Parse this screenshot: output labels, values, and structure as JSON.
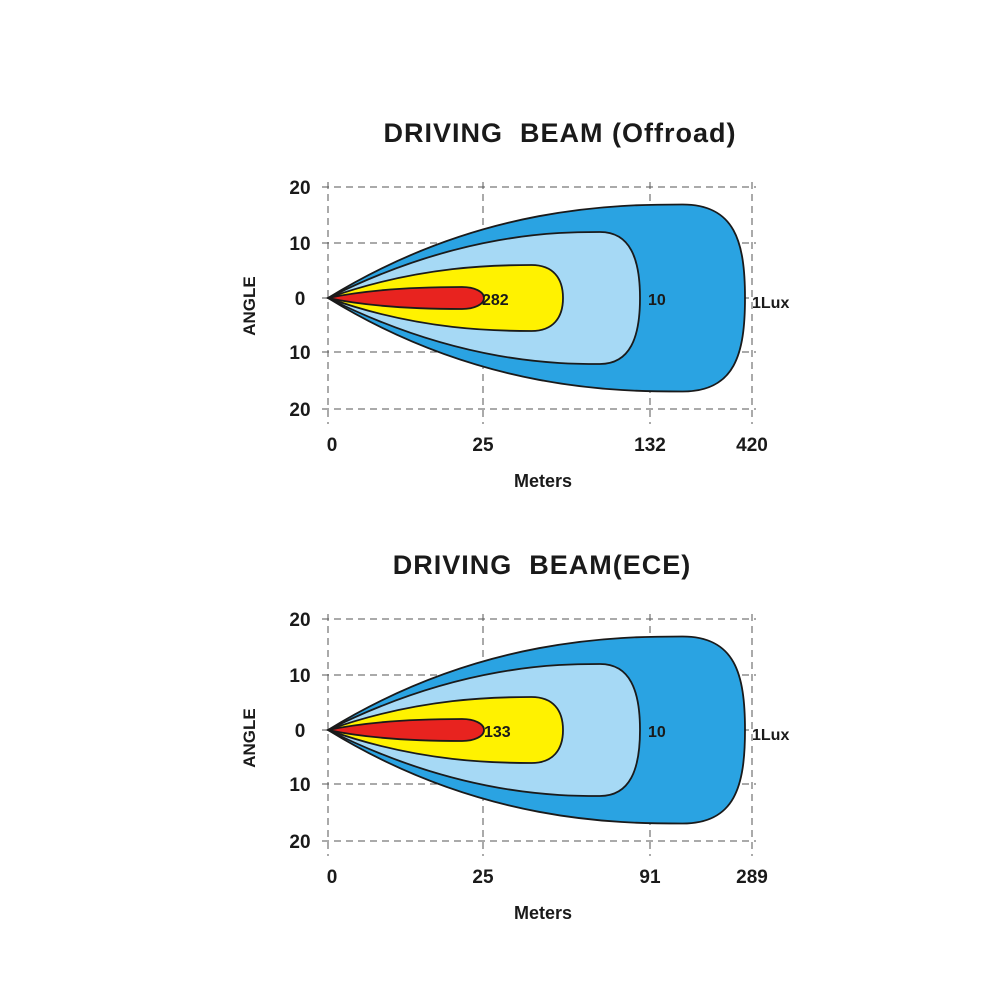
{
  "chart_data": [
    {
      "type": "area",
      "title": "DRIVING  BEAM (Offroad)",
      "xlabel": "Meters",
      "ylabel": "ANGLE",
      "x_ticks": [
        "0",
        "25",
        "132",
        "420"
      ],
      "y_ticks": [
        "20",
        "10",
        "0",
        "10",
        "20"
      ],
      "grid": true,
      "series": [
        {
          "name": "1Lux",
          "color": "#2aa3e2",
          "reach_x": "420",
          "spread_angle": 17
        },
        {
          "name": "10",
          "color": "#a6d9f5",
          "reach_x": "between 25 and 132",
          "spread_angle": 12
        },
        {
          "name": "282",
          "color": "#fff200",
          "reach_x": "between 25 and 132",
          "spread_angle": 6
        },
        {
          "name": "",
          "color": "#e8231f",
          "reach_x": "25",
          "spread_angle": 2
        }
      ],
      "labels": [
        "282",
        "10",
        "1Lux"
      ]
    },
    {
      "type": "area",
      "title": "DRIVING  BEAM(ECE)",
      "xlabel": "Meters",
      "ylabel": "ANGLE",
      "x_ticks": [
        "0",
        "25",
        "91",
        "289"
      ],
      "y_ticks": [
        "20",
        "10",
        "0",
        "10",
        "20"
      ],
      "grid": true,
      "series": [
        {
          "name": "1Lux",
          "color": "#2aa3e2",
          "reach_x": "289",
          "spread_angle": 17
        },
        {
          "name": "10",
          "color": "#a6d9f5",
          "reach_x": "between 25 and 91",
          "spread_angle": 12
        },
        {
          "name": "133",
          "color": "#fff200",
          "reach_x": "between 25 and 91",
          "spread_angle": 6
        },
        {
          "name": "",
          "color": "#e8231f",
          "reach_x": "25",
          "spread_angle": 2
        }
      ],
      "labels": [
        "133",
        "10",
        "1Lux"
      ]
    }
  ]
}
